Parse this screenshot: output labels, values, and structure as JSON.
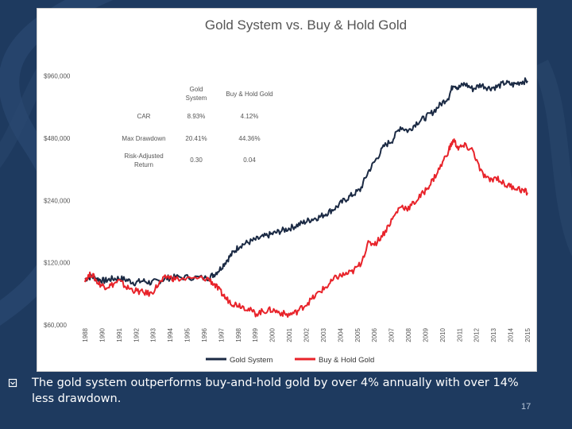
{
  "slide": {
    "caption": "The gold system outperforms buy-and-hold gold by over 4% annually with  over 14% less drawdown.",
    "page_number": "17",
    "background_color": "#1e3a5f"
  },
  "stats_table": {
    "col_headers": [
      "Gold\nSystem",
      "Buy & Hold Gold"
    ],
    "rows": [
      {
        "label": "CAR",
        "gold_system": "8.93%",
        "buy_hold": "4.12%"
      },
      {
        "label": "Max Drawdown",
        "gold_system": "20.41%",
        "buy_hold": "44.36%"
      },
      {
        "label": "Risk-Adjusted\nReturn",
        "gold_system": "0.30",
        "buy_hold": "0.04"
      }
    ]
  },
  "chart_data": {
    "type": "line",
    "title": "Gold System vs. Buy & Hold Gold",
    "xlabel": "",
    "ylabel": "",
    "y_scale": "log",
    "ylim": [
      60000,
      1000000
    ],
    "y_ticks": [
      60000,
      120000,
      240000,
      480000,
      960000
    ],
    "y_tick_labels": [
      "$60,000",
      "$120,000",
      "$240,000",
      "$480,000",
      "$960,000"
    ],
    "x_tick_labels": [
      "1988",
      "1990",
      "1991",
      "1992",
      "1993",
      "1994",
      "1995",
      "1996",
      "1997",
      "1998",
      "1999",
      "2000",
      "2001",
      "2002",
      "2003",
      "2004",
      "2005",
      "2006",
      "2007",
      "2008",
      "2009",
      "2010",
      "2011",
      "2012",
      "2013",
      "2014",
      "2015"
    ],
    "x_range": [
      1988.4,
      2015.9
    ],
    "series": [
      {
        "name": "Gold System",
        "color": "#1b2a44",
        "points": [
          [
            1988.4,
            100000
          ],
          [
            1988.8,
            103000
          ],
          [
            1989.2,
            100000
          ],
          [
            1989.6,
            98000
          ],
          [
            1990.0,
            100000
          ],
          [
            1990.5,
            101000
          ],
          [
            1991.0,
            99000
          ],
          [
            1991.5,
            96000
          ],
          [
            1992.0,
            98000
          ],
          [
            1992.5,
            96000
          ],
          [
            1993.0,
            98000
          ],
          [
            1993.5,
            101000
          ],
          [
            1994.0,
            102000
          ],
          [
            1995.0,
            102000
          ],
          [
            1996.0,
            101000
          ],
          [
            1996.4,
            105000
          ],
          [
            1996.8,
            112000
          ],
          [
            1997.2,
            123000
          ],
          [
            1997.6,
            134000
          ],
          [
            1998.0,
            145000
          ],
          [
            1998.5,
            150000
          ],
          [
            1999.0,
            155000
          ],
          [
            1999.5,
            160000
          ],
          [
            2000.0,
            165000
          ],
          [
            2000.5,
            170000
          ],
          [
            2001.0,
            175000
          ],
          [
            2001.5,
            181000
          ],
          [
            2002.0,
            188000
          ],
          [
            2002.5,
            195000
          ],
          [
            2003.0,
            200000
          ],
          [
            2003.5,
            210000
          ],
          [
            2004.0,
            222000
          ],
          [
            2004.5,
            240000
          ],
          [
            2005.0,
            255000
          ],
          [
            2005.5,
            270000
          ],
          [
            2006.0,
            330000
          ],
          [
            2006.5,
            380000
          ],
          [
            2007.0,
            440000
          ],
          [
            2007.5,
            470000
          ],
          [
            2008.0,
            545000
          ],
          [
            2008.5,
            520000
          ],
          [
            2009.0,
            570000
          ],
          [
            2009.5,
            600000
          ],
          [
            2010.0,
            640000
          ],
          [
            2010.5,
            700000
          ],
          [
            2011.0,
            760000
          ],
          [
            2011.3,
            880000
          ],
          [
            2011.6,
            840000
          ],
          [
            2012.0,
            880000
          ],
          [
            2012.5,
            830000
          ],
          [
            2013.0,
            870000
          ],
          [
            2013.5,
            840000
          ],
          [
            2014.0,
            850000
          ],
          [
            2014.5,
            890000
          ],
          [
            2015.0,
            870000
          ],
          [
            2015.5,
            900000
          ],
          [
            2015.9,
            910000
          ]
        ]
      },
      {
        "name": "Buy & Hold Gold",
        "color": "#e8232a",
        "points": [
          [
            1988.4,
            100000
          ],
          [
            1988.8,
            106000
          ],
          [
            1989.2,
            96000
          ],
          [
            1989.6,
            92000
          ],
          [
            1990.0,
            93000
          ],
          [
            1990.5,
            98000
          ],
          [
            1991.0,
            91000
          ],
          [
            1991.5,
            88000
          ],
          [
            1992.0,
            86000
          ],
          [
            1992.5,
            85000
          ],
          [
            1993.0,
            95000
          ],
          [
            1993.5,
            103000
          ],
          [
            1994.0,
            100000
          ],
          [
            1995.0,
            100000
          ],
          [
            1996.0,
            101000
          ],
          [
            1996.4,
            95000
          ],
          [
            1996.8,
            87000
          ],
          [
            1997.2,
            80000
          ],
          [
            1997.6,
            76000
          ],
          [
            1998.0,
            75000
          ],
          [
            1998.5,
            72000
          ],
          [
            1999.0,
            68000
          ],
          [
            1999.5,
            70000
          ],
          [
            2000.0,
            71000
          ],
          [
            2000.5,
            69000
          ],
          [
            2001.0,
            67000
          ],
          [
            2001.5,
            69000
          ],
          [
            2002.0,
            74000
          ],
          [
            2002.5,
            80000
          ],
          [
            2003.0,
            87000
          ],
          [
            2003.5,
            93000
          ],
          [
            2004.0,
            102000
          ],
          [
            2004.5,
            105000
          ],
          [
            2005.0,
            108000
          ],
          [
            2005.5,
            118000
          ],
          [
            2006.0,
            148000
          ],
          [
            2006.5,
            150000
          ],
          [
            2007.0,
            168000
          ],
          [
            2007.5,
            195000
          ],
          [
            2008.0,
            225000
          ],
          [
            2008.5,
            220000
          ],
          [
            2009.0,
            240000
          ],
          [
            2009.5,
            265000
          ],
          [
            2010.0,
            300000
          ],
          [
            2010.5,
            350000
          ],
          [
            2011.0,
            420000
          ],
          [
            2011.3,
            470000
          ],
          [
            2011.6,
            430000
          ],
          [
            2012.0,
            440000
          ],
          [
            2012.5,
            420000
          ],
          [
            2013.0,
            330000
          ],
          [
            2013.5,
            300000
          ],
          [
            2014.0,
            310000
          ],
          [
            2014.5,
            285000
          ],
          [
            2015.0,
            280000
          ],
          [
            2015.5,
            270000
          ],
          [
            2015.9,
            262000
          ]
        ]
      }
    ],
    "legend": {
      "position": "bottom"
    }
  }
}
